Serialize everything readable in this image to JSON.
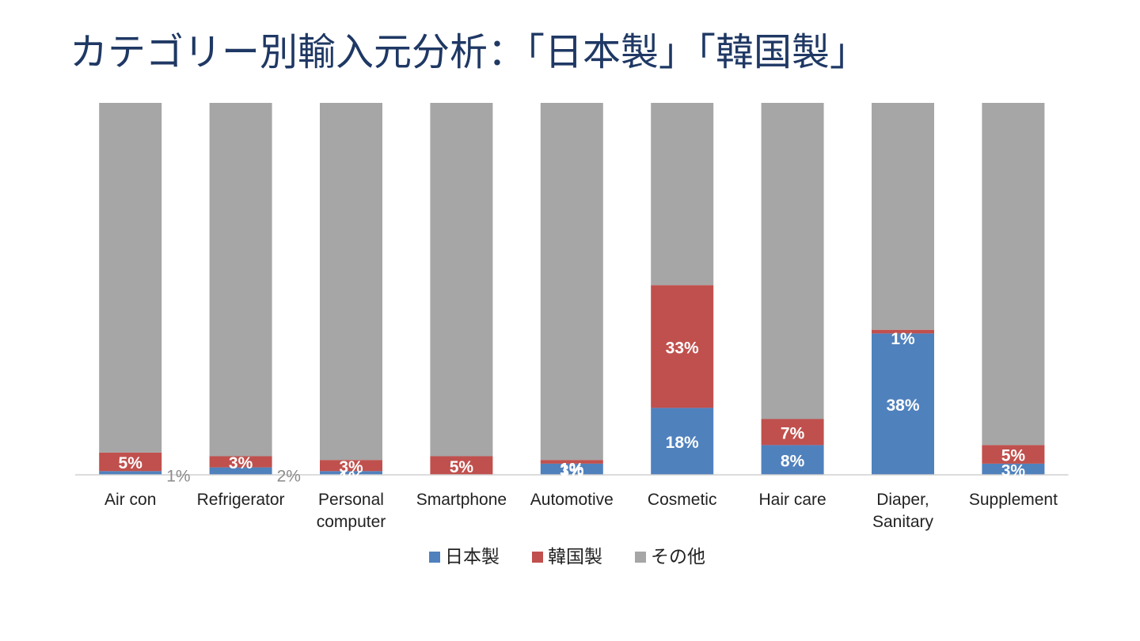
{
  "title": "カテゴリー別輸入元分析：「日本製」「韓国製」",
  "chart_data": {
    "type": "bar",
    "stacked": true,
    "categories": [
      "Air con",
      "Refrigerator",
      "Personal computer",
      "Smartphone",
      "Automotive",
      "Cosmetic",
      "Hair care",
      "Diaper, Sanitary",
      "Supplement"
    ],
    "category_lines": [
      [
        "Air con"
      ],
      [
        "Refrigerator"
      ],
      [
        "Personal",
        "computer"
      ],
      [
        "Smartphone"
      ],
      [
        "Automotive"
      ],
      [
        "Cosmetic"
      ],
      [
        "Hair care"
      ],
      [
        "Diaper,",
        "Sanitary"
      ],
      [
        "Supplement"
      ]
    ],
    "series": [
      {
        "name": "日本製",
        "color": "#4f81bd",
        "values": [
          1,
          2,
          1,
          0,
          3,
          18,
          8,
          38,
          3
        ],
        "labels": [
          "1%",
          "2%",
          "1%",
          "",
          "3%",
          "18%",
          "8%",
          "38%",
          "3%"
        ]
      },
      {
        "name": "韓国製",
        "color": "#c0504d",
        "values": [
          5,
          3,
          3,
          5,
          1,
          33,
          7,
          1,
          5
        ],
        "labels": [
          "5%",
          "3%",
          "3%",
          "5%",
          "1%",
          "33%",
          "7%",
          "1%",
          "5%"
        ]
      },
      {
        "name": "その他",
        "color": "#a6a6a6",
        "values": [
          94,
          95,
          96,
          95,
          96,
          49,
          85,
          61,
          92
        ],
        "labels": [
          "",
          "",
          "",
          "",
          "",
          "",
          "",
          "",
          ""
        ]
      }
    ],
    "ylim": [
      0,
      100
    ],
    "xlabel": "",
    "ylabel": "",
    "grid": false,
    "legend": "bottom"
  }
}
